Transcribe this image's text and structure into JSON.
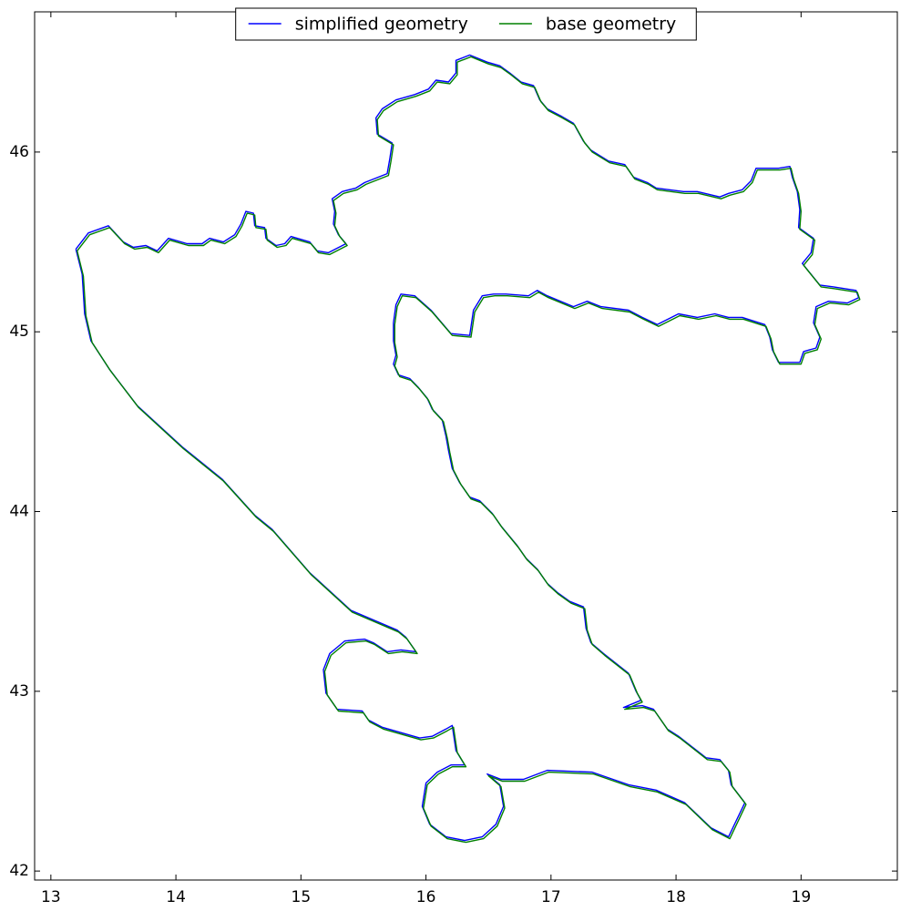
{
  "chart_data": {
    "type": "line",
    "xlim": [
      12.87,
      19.77
    ],
    "ylim": [
      41.95,
      46.78
    ],
    "xticks": [
      13,
      14,
      15,
      16,
      17,
      18,
      19
    ],
    "yticks": [
      42,
      43,
      44,
      45,
      46
    ],
    "legend": "upper center",
    "series": [
      {
        "name": "simplified geometry",
        "color": "#0000ff",
        "x": [
          13.2,
          13.3,
          13.46,
          13.58,
          13.66,
          13.76,
          13.85,
          13.94,
          14.09,
          14.21,
          14.27,
          14.38,
          14.47,
          14.52,
          14.56,
          14.62,
          14.63,
          14.71,
          14.72,
          14.8,
          14.87,
          14.92,
          15.07,
          15.13,
          15.22,
          15.36,
          15.3,
          15.26,
          15.27,
          15.25,
          15.33,
          15.44,
          15.51,
          15.69,
          15.71,
          15.73,
          15.61,
          15.6,
          15.65,
          15.76,
          15.91,
          16.02,
          16.08,
          16.18,
          16.24,
          16.24,
          16.35,
          16.49,
          16.59,
          16.67,
          16.76,
          16.86,
          16.91,
          16.97,
          17.08,
          17.18,
          17.26,
          17.32,
          17.46,
          17.59,
          17.66,
          17.77,
          17.84,
          18.06,
          18.17,
          18.35,
          18.42,
          18.53,
          18.6,
          18.64,
          18.82,
          18.91,
          18.93,
          18.97,
          18.99,
          18.98,
          19.1,
          19.08,
          19.01,
          19.15,
          19.26,
          19.44,
          19.46,
          19.37,
          19.22,
          19.12,
          19.1,
          19.15,
          19.12,
          19.02,
          18.99,
          18.82,
          18.77,
          18.75,
          18.71,
          18.53,
          18.42,
          18.31,
          18.17,
          18.02,
          17.85,
          17.73,
          17.62,
          17.4,
          17.29,
          17.18,
          16.97,
          16.89,
          16.82,
          16.64,
          16.54,
          16.45,
          16.38,
          16.35,
          16.2,
          16.04,
          15.91,
          15.8,
          15.76,
          15.74,
          15.74,
          15.76,
          15.74,
          15.78,
          15.87,
          15.94,
          16.01,
          16.05,
          16.13,
          16.16,
          16.18,
          16.21,
          16.27,
          16.35,
          16.43,
          16.53,
          16.6,
          16.73,
          16.8,
          16.89,
          16.97,
          17.05,
          17.15,
          17.26,
          17.28,
          17.32,
          17.42,
          17.62,
          17.68,
          17.72,
          17.58,
          17.73,
          17.82,
          17.88,
          17.93,
          18.02,
          18.13,
          18.24,
          18.35,
          18.42,
          18.44,
          18.55,
          18.42,
          18.28,
          18.07,
          17.84,
          17.62,
          17.33,
          16.97,
          16.78,
          16.6,
          16.49,
          16.59,
          16.62,
          16.56,
          16.45,
          16.31,
          16.16,
          16.03,
          15.97,
          16.0,
          16.09,
          16.2,
          16.31,
          16.24,
          16.21,
          16.16,
          16.05,
          15.95,
          15.8,
          15.65,
          15.54,
          15.49,
          15.29,
          15.2,
          15.18,
          15.23,
          15.35,
          15.51,
          15.58,
          15.69,
          15.8,
          15.92,
          15.84,
          15.77,
          15.4,
          15.07,
          14.77,
          14.63,
          14.37,
          14.05,
          13.69,
          13.47,
          13.32,
          13.27,
          13.25,
          13.2
        ],
        "values": [
          45.46,
          45.55,
          45.59,
          45.5,
          45.47,
          45.48,
          45.45,
          45.52,
          45.49,
          45.49,
          45.52,
          45.5,
          45.54,
          45.6,
          45.67,
          45.66,
          45.59,
          45.58,
          45.52,
          45.48,
          45.49,
          45.53,
          45.5,
          45.45,
          45.44,
          45.49,
          45.54,
          45.6,
          45.67,
          45.74,
          45.78,
          45.8,
          45.83,
          45.88,
          45.96,
          46.05,
          46.1,
          46.19,
          46.24,
          46.29,
          46.32,
          46.35,
          46.4,
          46.39,
          46.44,
          46.51,
          46.54,
          46.5,
          46.48,
          46.44,
          46.39,
          46.37,
          46.29,
          46.24,
          46.2,
          46.16,
          46.06,
          46.01,
          45.95,
          45.93,
          45.86,
          45.83,
          45.8,
          45.78,
          45.78,
          45.75,
          45.77,
          45.79,
          45.84,
          45.91,
          45.91,
          45.92,
          45.86,
          45.78,
          45.68,
          45.58,
          45.52,
          45.44,
          45.38,
          45.26,
          45.25,
          45.23,
          45.19,
          45.16,
          45.17,
          45.14,
          45.05,
          44.97,
          44.91,
          44.89,
          44.83,
          44.83,
          44.9,
          44.97,
          45.04,
          45.08,
          45.08,
          45.1,
          45.08,
          45.1,
          45.04,
          45.08,
          45.12,
          45.14,
          45.17,
          45.14,
          45.2,
          45.23,
          45.2,
          45.21,
          45.21,
          45.2,
          45.12,
          44.98,
          44.99,
          45.12,
          45.2,
          45.21,
          45.15,
          45.05,
          44.95,
          44.87,
          44.82,
          44.76,
          44.74,
          44.69,
          44.63,
          44.57,
          44.51,
          44.42,
          44.34,
          44.24,
          44.16,
          44.08,
          44.06,
          43.99,
          43.92,
          43.81,
          43.74,
          43.68,
          43.6,
          43.55,
          43.5,
          43.47,
          43.35,
          43.27,
          43.21,
          43.1,
          43.0,
          42.95,
          42.91,
          42.92,
          42.9,
          42.84,
          42.79,
          42.75,
          42.69,
          42.63,
          42.62,
          42.56,
          42.48,
          42.38,
          42.19,
          42.24,
          42.38,
          42.45,
          42.48,
          42.55,
          42.56,
          42.51,
          42.51,
          42.54,
          42.48,
          42.36,
          42.26,
          42.19,
          42.17,
          42.19,
          42.26,
          42.36,
          42.49,
          42.55,
          42.59,
          42.59,
          42.67,
          42.81,
          42.79,
          42.75,
          42.74,
          42.77,
          42.8,
          42.84,
          42.89,
          42.9,
          42.99,
          43.12,
          43.21,
          43.28,
          43.29,
          43.27,
          43.22,
          43.23,
          43.22,
          43.3,
          43.34,
          43.45,
          43.66,
          43.9,
          43.98,
          44.18,
          44.36,
          44.59,
          44.79,
          44.95,
          45.1,
          45.32,
          45.46
        ]
      },
      {
        "name": "base geometry",
        "color": "#008000",
        "x": [
          13.21,
          13.31,
          13.47,
          13.59,
          13.67,
          13.77,
          13.86,
          13.95,
          14.1,
          14.22,
          14.28,
          14.39,
          14.48,
          14.53,
          14.57,
          14.63,
          14.64,
          14.72,
          14.73,
          14.81,
          14.88,
          14.93,
          15.08,
          15.14,
          15.23,
          15.37,
          15.31,
          15.27,
          15.28,
          15.26,
          15.34,
          15.45,
          15.52,
          15.7,
          15.72,
          15.74,
          15.62,
          15.61,
          15.66,
          15.77,
          15.92,
          16.03,
          16.09,
          16.19,
          16.25,
          16.25,
          16.36,
          16.5,
          16.6,
          16.68,
          16.77,
          16.87,
          16.92,
          16.98,
          17.09,
          17.19,
          17.27,
          17.33,
          17.47,
          17.6,
          17.67,
          17.78,
          17.85,
          18.07,
          18.18,
          18.36,
          18.43,
          18.54,
          18.61,
          18.65,
          18.83,
          18.92,
          18.94,
          18.98,
          19.0,
          18.99,
          19.11,
          19.09,
          19.02,
          19.16,
          19.27,
          19.45,
          19.47,
          19.38,
          19.23,
          19.13,
          19.11,
          19.16,
          19.13,
          19.03,
          19.0,
          18.83,
          18.78,
          18.76,
          18.72,
          18.54,
          18.43,
          18.32,
          18.18,
          18.03,
          17.86,
          17.74,
          17.63,
          17.41,
          17.3,
          17.19,
          16.98,
          16.9,
          16.83,
          16.65,
          16.55,
          16.46,
          16.39,
          16.36,
          16.21,
          16.05,
          15.92,
          15.81,
          15.77,
          15.75,
          15.75,
          15.77,
          15.75,
          15.79,
          15.88,
          15.95,
          16.02,
          16.06,
          16.14,
          16.17,
          16.19,
          16.22,
          16.28,
          16.36,
          16.44,
          16.54,
          16.61,
          16.74,
          16.81,
          16.9,
          16.98,
          17.06,
          17.16,
          17.27,
          17.29,
          17.33,
          17.43,
          17.63,
          17.69,
          17.73,
          17.59,
          17.74,
          17.83,
          17.89,
          17.94,
          18.03,
          18.14,
          18.25,
          18.36,
          18.43,
          18.45,
          18.56,
          18.43,
          18.29,
          18.08,
          17.85,
          17.63,
          17.34,
          16.98,
          16.79,
          16.61,
          16.5,
          16.6,
          16.63,
          16.57,
          16.46,
          16.32,
          16.17,
          16.04,
          15.98,
          16.01,
          16.1,
          16.21,
          16.32,
          16.25,
          16.22,
          16.17,
          16.06,
          15.96,
          15.81,
          15.66,
          15.55,
          15.5,
          15.3,
          15.21,
          15.19,
          15.24,
          15.36,
          15.52,
          15.59,
          15.7,
          15.81,
          15.93,
          15.85,
          15.78,
          15.41,
          15.08,
          14.78,
          14.64,
          14.38,
          14.06,
          13.7,
          13.48,
          13.33,
          13.28,
          13.26,
          13.21
        ],
        "values": [
          45.45,
          45.54,
          45.58,
          45.49,
          45.46,
          45.47,
          45.44,
          45.51,
          45.48,
          45.48,
          45.51,
          45.49,
          45.53,
          45.59,
          45.66,
          45.65,
          45.58,
          45.57,
          45.51,
          45.47,
          45.48,
          45.52,
          45.49,
          45.44,
          45.43,
          45.48,
          45.53,
          45.59,
          45.66,
          45.73,
          45.77,
          45.79,
          45.82,
          45.87,
          45.95,
          46.04,
          46.09,
          46.18,
          46.23,
          46.28,
          46.31,
          46.34,
          46.39,
          46.38,
          46.43,
          46.5,
          46.53,
          46.49,
          46.47,
          46.43,
          46.38,
          46.36,
          46.28,
          46.23,
          46.19,
          46.15,
          46.05,
          46.0,
          45.94,
          45.92,
          45.85,
          45.82,
          45.79,
          45.77,
          45.77,
          45.74,
          45.76,
          45.78,
          45.83,
          45.9,
          45.9,
          45.91,
          45.85,
          45.77,
          45.67,
          45.57,
          45.51,
          45.43,
          45.37,
          45.25,
          45.24,
          45.22,
          45.18,
          45.15,
          45.16,
          45.13,
          45.04,
          44.96,
          44.9,
          44.88,
          44.82,
          44.82,
          44.89,
          44.96,
          45.03,
          45.07,
          45.07,
          45.09,
          45.07,
          45.09,
          45.03,
          45.07,
          45.11,
          45.13,
          45.16,
          45.13,
          45.19,
          45.22,
          45.19,
          45.2,
          45.2,
          45.19,
          45.11,
          44.97,
          44.98,
          45.11,
          45.19,
          45.2,
          45.14,
          45.04,
          44.94,
          44.86,
          44.81,
          44.75,
          44.73,
          44.68,
          44.62,
          44.56,
          44.5,
          44.41,
          44.33,
          44.23,
          44.15,
          44.07,
          44.05,
          43.98,
          43.91,
          43.8,
          43.73,
          43.67,
          43.59,
          43.54,
          43.49,
          43.46,
          43.34,
          43.26,
          43.2,
          43.09,
          42.99,
          42.94,
          42.9,
          42.91,
          42.89,
          42.83,
          42.78,
          42.74,
          42.68,
          42.62,
          42.61,
          42.55,
          42.47,
          42.37,
          42.18,
          42.23,
          42.37,
          42.44,
          42.47,
          42.54,
          42.55,
          42.5,
          42.5,
          42.53,
          42.47,
          42.35,
          42.25,
          42.18,
          42.16,
          42.18,
          42.25,
          42.35,
          42.48,
          42.54,
          42.58,
          42.58,
          42.66,
          42.8,
          42.78,
          42.74,
          42.73,
          42.76,
          42.79,
          42.83,
          42.88,
          42.89,
          42.98,
          43.11,
          43.2,
          43.27,
          43.28,
          43.26,
          43.21,
          43.22,
          43.21,
          43.29,
          43.33,
          43.44,
          43.65,
          43.89,
          43.97,
          44.17,
          44.35,
          44.58,
          44.78,
          44.94,
          45.09,
          45.31,
          45.45
        ]
      }
    ]
  }
}
